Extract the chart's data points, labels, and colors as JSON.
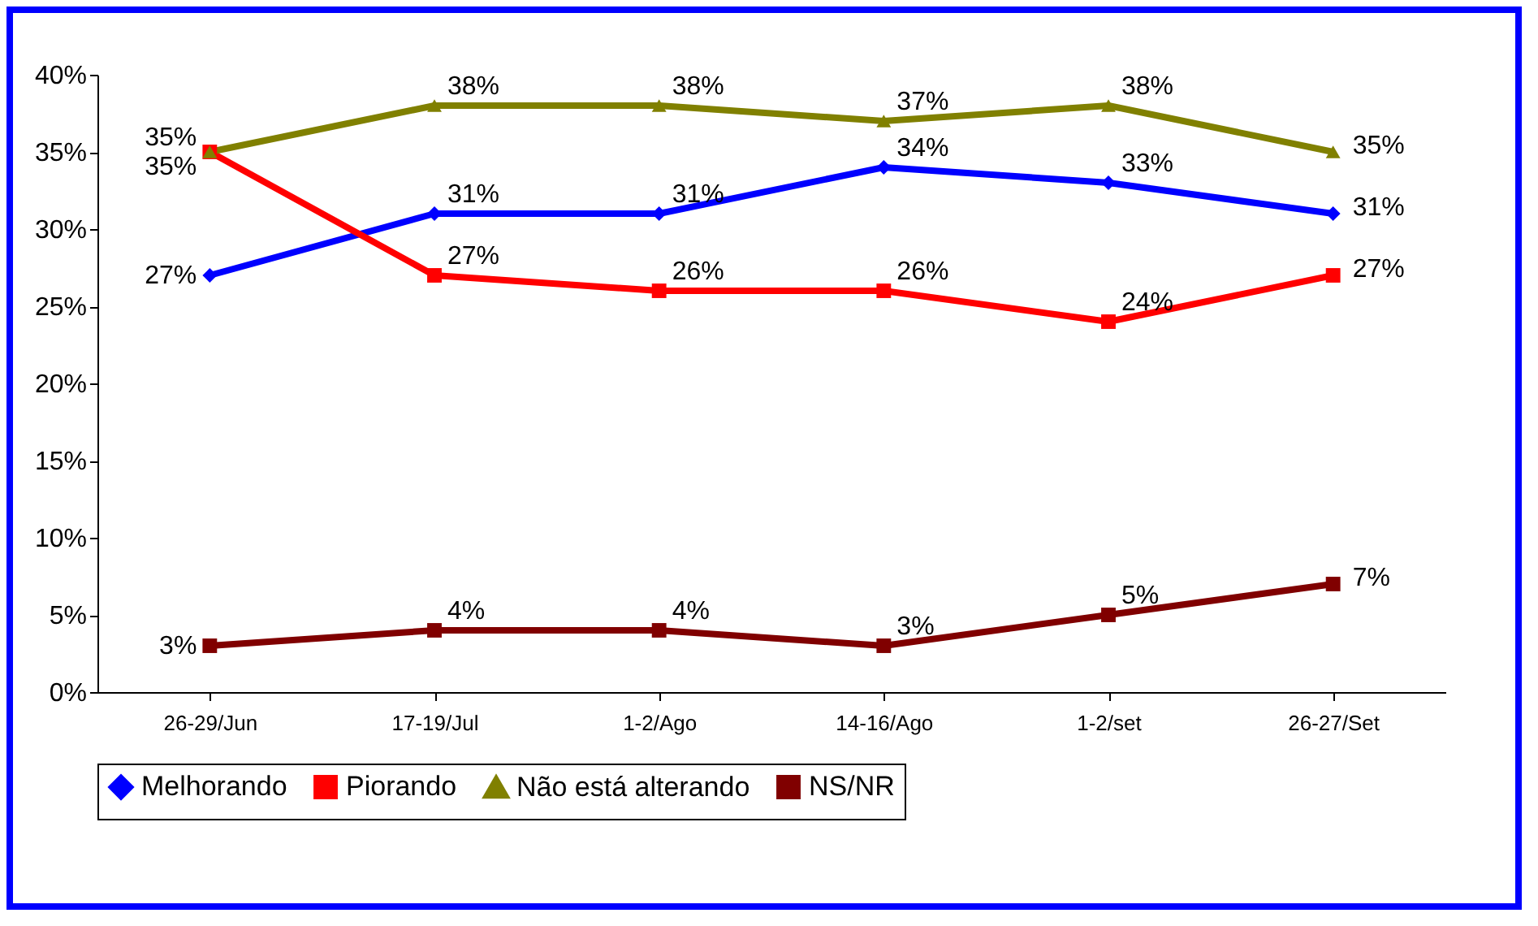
{
  "chart_data": {
    "type": "line",
    "categories": [
      "26-29/Jun",
      "17-19/Jul",
      "1-2/Ago",
      "14-16/Ago",
      "1-2/set",
      "26-27/Set"
    ],
    "ylim": [
      0,
      40
    ],
    "yticks": [
      {
        "value": 0,
        "label": "0%"
      },
      {
        "value": 5,
        "label": "5%"
      },
      {
        "value": 10,
        "label": "10%"
      },
      {
        "value": 15,
        "label": "15%"
      },
      {
        "value": 20,
        "label": "20%"
      },
      {
        "value": 25,
        "label": "25%"
      },
      {
        "value": 30,
        "label": "30%"
      },
      {
        "value": 35,
        "label": "35%"
      },
      {
        "value": 40,
        "label": "40%"
      }
    ],
    "grid": false,
    "legend": "bottom",
    "line_style": "solid",
    "series": [
      {
        "name": "Melhorando",
        "color": "#0000ff",
        "marker": "diamond",
        "values": [
          27,
          31,
          31,
          34,
          33,
          31
        ],
        "value_labels": [
          "27%",
          "31%",
          "31%",
          "34%",
          "33%",
          "31%"
        ]
      },
      {
        "name": "Piorando",
        "color": "#ff0000",
        "marker": "square",
        "values": [
          35,
          27,
          26,
          26,
          24,
          27
        ],
        "value_labels": [
          "35%",
          "27%",
          "26%",
          "26%",
          "24%",
          "27%"
        ]
      },
      {
        "name": "Não está alterando",
        "color": "#808000",
        "marker": "triangle",
        "values": [
          35,
          38,
          38,
          37,
          38,
          35
        ],
        "value_labels": [
          "35%",
          "38%",
          "38%",
          "37%",
          "38%",
          "35%"
        ]
      },
      {
        "name": "NS/NR",
        "color": "#800000",
        "marker": "square",
        "values": [
          3,
          4,
          4,
          3,
          5,
          7
        ],
        "value_labels": [
          "3%",
          "4%",
          "4%",
          "3%",
          "5%",
          "7%"
        ]
      }
    ]
  }
}
